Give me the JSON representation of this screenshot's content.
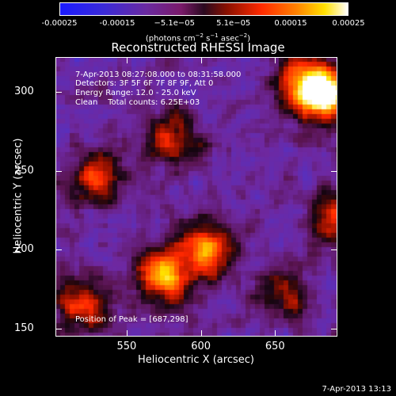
{
  "colorbar": {
    "ticks": [
      "-0.00025",
      "-0.00015",
      "−5.1e−05",
      "5.1e−05",
      "0.00015",
      "0.00025"
    ],
    "tick_values": [
      -0.00025,
      -0.00015,
      -5.1e-05,
      5.1e-05,
      0.00015,
      0.00025
    ],
    "units_main": "(photons cm",
    "units_sup1": "−2",
    "units_mid": " s",
    "units_sup2": "−1",
    "units_mid2": " asec",
    "units_sup3": "−2",
    "units_end": ")",
    "colors": [
      "#1a1aff",
      "#4a2aa8",
      "#7a1a7a",
      "#ff2000",
      "#ffc000",
      "#ffffff"
    ]
  },
  "chart_data": {
    "type": "heatmap",
    "title": "Reconstructed RHESSI Image",
    "xlabel": "Heliocentric X (arcsec)",
    "ylabel": "Heliocentric Y (arcsec)",
    "xlim": [
      502,
      692
    ],
    "ylim": [
      145,
      322
    ],
    "x_ticks": [
      "550",
      "600",
      "650"
    ],
    "x_tick_values": [
      550,
      600,
      650
    ],
    "y_ticks": [
      "150",
      "200",
      "250",
      "300"
    ],
    "y_tick_values": [
      150,
      200,
      250,
      300
    ],
    "value_range": [
      -0.00025,
      0.00025
    ],
    "bright_regions": [
      {
        "x": 687,
        "y": 298,
        "level": 1.0
      },
      {
        "x": 668,
        "y": 305,
        "level": 0.85
      },
      {
        "x": 575,
        "y": 185,
        "level": 0.9
      },
      {
        "x": 605,
        "y": 200,
        "level": 0.75
      },
      {
        "x": 520,
        "y": 165,
        "level": 0.6
      },
      {
        "x": 580,
        "y": 270,
        "level": 0.55
      },
      {
        "x": 530,
        "y": 245,
        "level": 0.6
      },
      {
        "x": 655,
        "y": 170,
        "level": 0.45
      },
      {
        "x": 690,
        "y": 220,
        "level": 0.55
      }
    ],
    "annotations": {
      "line1": "7-Apr-2013 08:27:08.000 to 08:31:58.000",
      "line2": "Detectors: 3F 5F 6F 7F 8F 9F, Att 0",
      "line3": "Energy Range: 12.0 - 25.0 keV",
      "line4": "Clean    Total counts: 6.25E+03",
      "peak": "Position of Peak = [687,298]"
    }
  },
  "footer": {
    "timestamp": "7-Apr-2013 13:13"
  }
}
